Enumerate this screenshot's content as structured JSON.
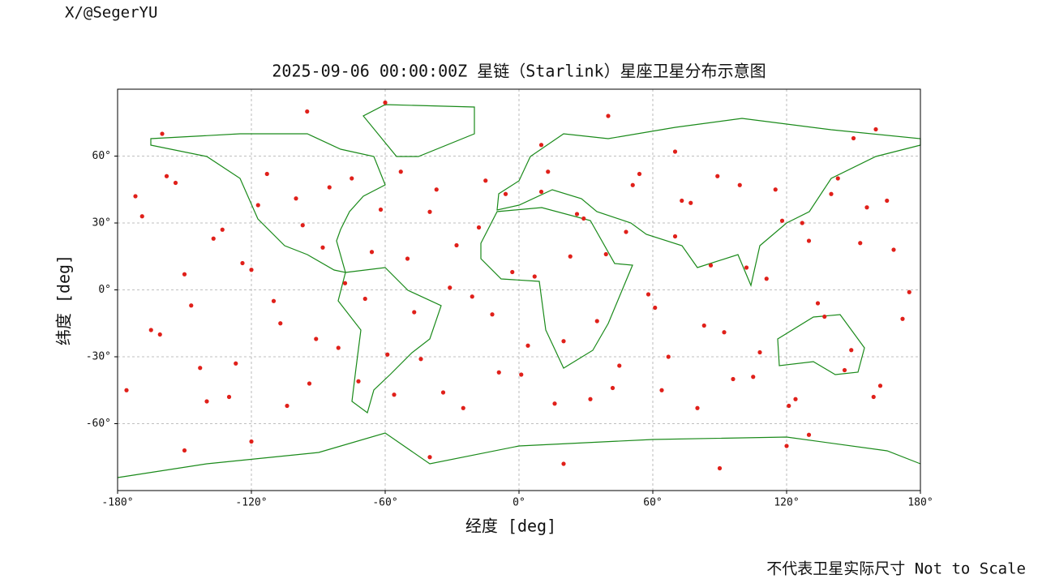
{
  "watermark": "X/@SegerYU",
  "footer": "不代表卫星实际尺寸 Not to Scale",
  "chart_data": {
    "type": "scatter",
    "title": "2025-09-06 00:00:00Z 星链（Starlink）星座卫星分布示意图",
    "x_label": "经度 [deg]",
    "y_label": "纬度 [deg]",
    "color": "#e0201a",
    "grid": true,
    "xlim": [
      -180,
      180
    ],
    "ylim": [
      -90,
      90
    ],
    "xticks": [
      {
        "value": -180,
        "label": "-180°"
      },
      {
        "value": -120,
        "label": "-120°"
      },
      {
        "value": -60,
        "label": "-60°"
      },
      {
        "value": 0,
        "label": "0°"
      },
      {
        "value": 60,
        "label": "60°"
      },
      {
        "value": 120,
        "label": "120°"
      },
      {
        "value": 180,
        "label": "180°"
      }
    ],
    "yticks": [
      {
        "value": 60,
        "label": "60°"
      },
      {
        "value": 30,
        "label": "30°"
      },
      {
        "value": 0,
        "label": "0°"
      },
      {
        "value": -30,
        "label": "-30°"
      },
      {
        "value": -60,
        "label": "-60°"
      }
    ],
    "x": [
      -172,
      -165,
      -158,
      -150,
      -143,
      -137,
      -130,
      -124,
      -117,
      -110,
      -104,
      -97,
      -91,
      -85,
      -78,
      -72,
      -66,
      -59,
      -53,
      -47,
      -40,
      -34,
      -28,
      -21,
      -15,
      -9,
      -3,
      4,
      10,
      16,
      23,
      29,
      35,
      42,
      48,
      54,
      61,
      67,
      73,
      80,
      86,
      92,
      99,
      105,
      111,
      118,
      124,
      130,
      137,
      143,
      149,
      156,
      162,
      168,
      175,
      -176,
      -169,
      -161,
      -154,
      -147,
      -140,
      -133,
      -127,
      -120,
      -113,
      -107,
      -100,
      -94,
      -88,
      -81,
      -75,
      -69,
      -62,
      -56,
      -50,
      -44,
      -37,
      -31,
      -25,
      -18,
      -12,
      -6,
      1,
      7,
      13,
      20,
      26,
      32,
      39,
      45,
      51,
      58,
      64,
      70,
      77,
      83,
      89,
      96,
      102,
      108,
      115,
      121,
      127,
      134,
      140,
      146,
      153,
      159,
      165,
      172,
      -160,
      -120,
      -95,
      -40,
      10,
      40,
      90,
      130,
      160,
      -150,
      -60,
      20,
      70,
      120,
      150
    ],
    "values": [
      42,
      -18,
      51,
      7,
      -35,
      23,
      -48,
      12,
      38,
      -5,
      -52,
      29,
      -22,
      46,
      3,
      -41,
      17,
      -29,
      53,
      -10,
      35,
      -46,
      20,
      -3,
      49,
      -37,
      8,
      -25,
      44,
      -51,
      15,
      32,
      -14,
      -44,
      26,
      52,
      -8,
      -30,
      40,
      -53,
      11,
      -19,
      47,
      -39,
      5,
      31,
      -49,
      22,
      -12,
      50,
      -27,
      37,
      -43,
      18,
      -1,
      -45,
      33,
      -20,
      48,
      -7,
      -50,
      27,
      -33,
      9,
      52,
      -15,
      41,
      -42,
      19,
      -26,
      50,
      -4,
      36,
      -47,
      14,
      -31,
      45,
      1,
      -53,
      28,
      -11,
      43,
      -38,
      6,
      53,
      -23,
      34,
      -49,
      16,
      -34,
      47,
      -2,
      -45,
      24,
      39,
      -16,
      51,
      -40,
      10,
      -28,
      45,
      -52,
      30,
      -6,
      43,
      -36,
      21,
      -48,
      40,
      -13,
      70,
      -68,
      80,
      -75,
      65,
      78,
      -80,
      -65,
      72,
      -72,
      84,
      -78,
      62,
      -70,
      68
    ]
  }
}
